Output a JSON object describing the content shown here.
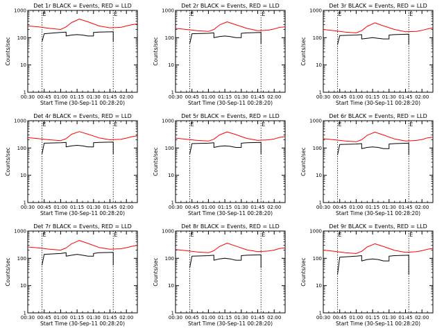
{
  "figure": {
    "background": "#ffffff",
    "colors": {
      "events": "#000000",
      "lld": "#ff0000",
      "axes": "#000000"
    }
  },
  "chart_data": [
    {
      "type": "line",
      "title": "Det 1r BLACK = Events, RED = LLD",
      "xlabel": "Start Time (30-Sep-11 00:28:20)",
      "ylabel": "Counts/sec",
      "yscale": "log",
      "ylim": [
        1,
        1000
      ],
      "xlim": [
        "00:30",
        "02:10"
      ],
      "xticks": [
        "00:30",
        "00:45",
        "01:00",
        "01:15",
        "01:30",
        "01:45",
        "02:00"
      ],
      "yticks": [
        "1",
        "10",
        "100",
        "1000"
      ],
      "marker_text": "E",
      "vlines": [
        "00:43",
        "01:48"
      ],
      "series": [
        {
          "name": "Events",
          "color": "#000000",
          "x": [
            "00:43",
            "00:45",
            "01:00",
            "01:05",
            "01:05",
            "01:10",
            "01:15",
            "01:20",
            "01:25",
            "01:30",
            "01:30",
            "01:35",
            "01:48",
            "01:48"
          ],
          "y": [
            70,
            140,
            155,
            160,
            115,
            125,
            130,
            125,
            115,
            115,
            155,
            160,
            165,
            70
          ]
        },
        {
          "name": "LLD",
          "color": "#ff0000",
          "x": [
            "00:30",
            "00:40",
            "00:50",
            "01:00",
            "01:05",
            "01:10",
            "01:17",
            "01:25",
            "01:35",
            "01:45",
            "01:55",
            "02:00",
            "02:05",
            "02:10"
          ],
          "y": [
            270,
            250,
            220,
            200,
            250,
            360,
            480,
            380,
            270,
            230,
            240,
            270,
            300,
            320
          ]
        }
      ]
    },
    {
      "type": "line",
      "title": "Det 2r BLACK = Events, RED = LLD",
      "xlabel": "Start Time (30-Sep-11 00:28:20)",
      "ylabel": "Counts/sec",
      "yscale": "log",
      "ylim": [
        1,
        1000
      ],
      "xlim": [
        "00:30",
        "02:10"
      ],
      "xticks": [
        "00:30",
        "00:45",
        "01:00",
        "01:15",
        "01:30",
        "01:45",
        "02:00"
      ],
      "yticks": [
        "1",
        "10",
        "100",
        "1000"
      ],
      "marker_text": "E",
      "vlines": [
        "00:43",
        "01:48"
      ],
      "series": [
        {
          "name": "Events",
          "color": "#000000",
          "x": [
            "00:43",
            "00:45",
            "01:00",
            "01:05",
            "01:05",
            "01:10",
            "01:15",
            "01:20",
            "01:25",
            "01:30",
            "01:30",
            "01:35",
            "01:48",
            "01:48"
          ],
          "y": [
            60,
            140,
            145,
            150,
            100,
            110,
            115,
            110,
            100,
            100,
            145,
            150,
            155,
            60
          ]
        },
        {
          "name": "LLD",
          "color": "#ff0000",
          "x": [
            "00:30",
            "00:40",
            "00:50",
            "01:00",
            "01:05",
            "01:10",
            "01:17",
            "01:25",
            "01:35",
            "01:45",
            "01:55",
            "02:00",
            "02:05",
            "02:10"
          ],
          "y": [
            220,
            200,
            180,
            170,
            200,
            290,
            380,
            300,
            220,
            180,
            190,
            210,
            240,
            250
          ]
        }
      ]
    },
    {
      "type": "line",
      "title": "Det 3r BLACK = Events, RED = LLD",
      "xlabel": "Start Time (30-Sep-11 00:28:20)",
      "ylabel": "Counts/sec",
      "yscale": "log",
      "ylim": [
        1,
        1000
      ],
      "xlim": [
        "00:30",
        "02:10"
      ],
      "xticks": [
        "00:30",
        "00:45",
        "01:00",
        "01:15",
        "01:30",
        "01:45",
        "02:00"
      ],
      "yticks": [
        "1",
        "10",
        "100",
        "1000"
      ],
      "marker_text": "E",
      "vlines": [
        "00:43",
        "01:48"
      ],
      "series": [
        {
          "name": "Events",
          "color": "#000000",
          "x": [
            "00:43",
            "00:45",
            "01:00",
            "01:05",
            "01:05",
            "01:10",
            "01:15",
            "01:20",
            "01:25",
            "01:30",
            "01:30",
            "01:35",
            "01:48",
            "01:48"
          ],
          "y": [
            55,
            120,
            125,
            130,
            90,
            95,
            100,
            95,
            90,
            90,
            125,
            130,
            135,
            55
          ]
        },
        {
          "name": "LLD",
          "color": "#ff0000",
          "x": [
            "00:30",
            "00:40",
            "00:50",
            "01:00",
            "01:05",
            "01:10",
            "01:17",
            "01:25",
            "01:35",
            "01:45",
            "01:55",
            "02:00",
            "02:05",
            "02:10"
          ],
          "y": [
            200,
            180,
            160,
            150,
            180,
            260,
            350,
            270,
            200,
            165,
            170,
            185,
            210,
            230
          ]
        }
      ]
    },
    {
      "type": "line",
      "title": "Det 4r BLACK = Events, RED = LLD",
      "xlabel": "Start Time (30-Sep-11 00:28:20)",
      "ylabel": "Counts/sec",
      "yscale": "log",
      "ylim": [
        1,
        1000
      ],
      "xlim": [
        "00:30",
        "02:10"
      ],
      "xticks": [
        "00:30",
        "00:45",
        "01:00",
        "01:15",
        "01:30",
        "01:45",
        "02:00"
      ],
      "yticks": [
        "1",
        "10",
        "100",
        "1000"
      ],
      "marker_text": "E",
      "vlines": [
        "00:43",
        "01:48"
      ],
      "series": [
        {
          "name": "Events",
          "color": "#000000",
          "x": [
            "00:43",
            "00:45",
            "01:00",
            "01:05",
            "01:05",
            "01:10",
            "01:15",
            "01:20",
            "01:25",
            "01:30",
            "01:30",
            "01:35",
            "01:48",
            "01:48"
          ],
          "y": [
            60,
            150,
            155,
            160,
            110,
            120,
            125,
            120,
            110,
            110,
            155,
            160,
            165,
            60
          ]
        },
        {
          "name": "LLD",
          "color": "#ff0000",
          "x": [
            "00:30",
            "00:40",
            "00:50",
            "01:00",
            "01:05",
            "01:10",
            "01:17",
            "01:25",
            "01:35",
            "01:45",
            "01:55",
            "02:00",
            "02:05",
            "02:10"
          ],
          "y": [
            240,
            220,
            200,
            185,
            220,
            320,
            400,
            320,
            235,
            200,
            210,
            230,
            260,
            280
          ]
        }
      ]
    },
    {
      "type": "line",
      "title": "Det 5r BLACK = Events, RED = LLD",
      "xlabel": "Start Time (30-Sep-11 00:28:20)",
      "ylabel": "Counts/sec",
      "yscale": "log",
      "ylim": [
        1,
        1000
      ],
      "xlim": [
        "00:30",
        "02:10"
      ],
      "xticks": [
        "00:30",
        "00:45",
        "01:00",
        "01:15",
        "01:30",
        "01:45",
        "02:00"
      ],
      "yticks": [
        "1",
        "10",
        "100",
        "1000"
      ],
      "marker_text": "E",
      "vlines": [
        "00:43",
        "01:48"
      ],
      "series": [
        {
          "name": "Events",
          "color": "#000000",
          "x": [
            "00:43",
            "00:45",
            "01:00",
            "01:05",
            "01:05",
            "01:10",
            "01:15",
            "01:20",
            "01:25",
            "01:30",
            "01:30",
            "01:35",
            "01:48",
            "01:48"
          ],
          "y": [
            60,
            145,
            150,
            155,
            105,
            115,
            120,
            115,
            105,
            105,
            150,
            155,
            160,
            60
          ]
        },
        {
          "name": "LLD",
          "color": "#ff0000",
          "x": [
            "00:30",
            "00:40",
            "00:50",
            "01:00",
            "01:05",
            "01:10",
            "01:17",
            "01:25",
            "01:35",
            "01:45",
            "01:55",
            "02:00",
            "02:05",
            "02:10"
          ],
          "y": [
            230,
            210,
            190,
            180,
            210,
            300,
            390,
            310,
            225,
            190,
            200,
            215,
            245,
            260
          ]
        }
      ]
    },
    {
      "type": "line",
      "title": "Det 6r BLACK = Events, RED = LLD",
      "xlabel": "Start Time (30-Sep-11 00:28:20)",
      "ylabel": "Counts/sec",
      "yscale": "log",
      "ylim": [
        1,
        1000
      ],
      "xlim": [
        "00:30",
        "02:10"
      ],
      "xticks": [
        "00:30",
        "00:45",
        "01:00",
        "01:15",
        "01:30",
        "01:45",
        "02:00"
      ],
      "yticks": [
        "1",
        "10",
        "100",
        "1000"
      ],
      "marker_text": "E",
      "vlines": [
        "00:43",
        "01:48"
      ],
      "series": [
        {
          "name": "Events",
          "color": "#000000",
          "x": [
            "00:43",
            "00:45",
            "01:00",
            "01:05",
            "01:05",
            "01:10",
            "01:15",
            "01:20",
            "01:25",
            "01:30",
            "01:30",
            "01:35",
            "01:48",
            "01:48"
          ],
          "y": [
            55,
            135,
            140,
            145,
            95,
            105,
            110,
            105,
            95,
            95,
            140,
            145,
            150,
            55
          ]
        },
        {
          "name": "LLD",
          "color": "#ff0000",
          "x": [
            "00:30",
            "00:40",
            "00:50",
            "01:00",
            "01:05",
            "01:10",
            "01:17",
            "01:25",
            "01:35",
            "01:45",
            "01:55",
            "02:00",
            "02:05",
            "02:10"
          ],
          "y": [
            220,
            200,
            180,
            170,
            200,
            290,
            380,
            300,
            215,
            180,
            190,
            205,
            235,
            250
          ]
        }
      ]
    },
    {
      "type": "line",
      "title": "Det 7r BLACK = Events, RED = LLD",
      "xlabel": "Start Time (30-Sep-11 00:28:20)",
      "ylabel": "Counts/sec",
      "yscale": "log",
      "ylim": [
        1,
        1000
      ],
      "xlim": [
        "00:30",
        "02:10"
      ],
      "xticks": [
        "00:30",
        "00:45",
        "01:00",
        "01:15",
        "01:30",
        "01:45",
        "02:00"
      ],
      "yticks": [
        "1",
        "10",
        "100",
        "1000"
      ],
      "marker_text": "E",
      "vlines": [
        "00:43",
        "01:48"
      ],
      "series": [
        {
          "name": "Events",
          "color": "#000000",
          "x": [
            "00:43",
            "00:45",
            "01:00",
            "01:05",
            "01:05",
            "01:10",
            "01:15",
            "01:20",
            "01:25",
            "01:30",
            "01:30",
            "01:35",
            "01:48",
            "01:48"
          ],
          "y": [
            55,
            140,
            150,
            160,
            120,
            130,
            140,
            130,
            120,
            120,
            150,
            160,
            165,
            55
          ]
        },
        {
          "name": "LLD",
          "color": "#ff0000",
          "x": [
            "00:30",
            "00:40",
            "00:50",
            "01:00",
            "01:05",
            "01:10",
            "01:17",
            "01:25",
            "01:35",
            "01:45",
            "01:55",
            "02:00",
            "02:05",
            "02:10"
          ],
          "y": [
            260,
            240,
            215,
            200,
            240,
            340,
            450,
            350,
            250,
            215,
            225,
            245,
            275,
            300
          ]
        }
      ]
    },
    {
      "type": "line",
      "title": "Det 8r BLACK = Events, RED = LLD",
      "xlabel": "Start Time (30-Sep-11 00:28:20)",
      "ylabel": "Counts/sec",
      "yscale": "log",
      "ylim": [
        1,
        1000
      ],
      "xlim": [
        "00:30",
        "02:10"
      ],
      "xticks": [
        "00:30",
        "00:45",
        "01:00",
        "01:15",
        "01:30",
        "01:45",
        "02:00"
      ],
      "yticks": [
        "1",
        "10",
        "100",
        "1000"
      ],
      "marker_text": "E",
      "vlines": [
        "00:43",
        "01:48"
      ],
      "series": [
        {
          "name": "Events",
          "color": "#000000",
          "x": [
            "00:43",
            "00:45",
            "01:00",
            "01:05",
            "01:05",
            "01:10",
            "01:15",
            "01:20",
            "01:25",
            "01:30",
            "01:30",
            "01:35",
            "01:48",
            "01:48"
          ],
          "y": [
            45,
            120,
            125,
            130,
            85,
            95,
            100,
            95,
            85,
            85,
            125,
            130,
            135,
            45
          ]
        },
        {
          "name": "LLD",
          "color": "#ff0000",
          "x": [
            "00:30",
            "00:40",
            "00:50",
            "01:00",
            "01:05",
            "01:10",
            "01:17",
            "01:25",
            "01:35",
            "01:45",
            "01:55",
            "02:00",
            "02:05",
            "02:10"
          ],
          "y": [
            210,
            190,
            170,
            160,
            190,
            270,
            360,
            280,
            205,
            175,
            185,
            200,
            230,
            240
          ]
        }
      ]
    },
    {
      "type": "line",
      "title": "Det 9r BLACK = Events, RED = LLD",
      "xlabel": "Start Time (30-Sep-11 00:28:20)",
      "ylabel": "Counts/sec",
      "yscale": "log",
      "ylim": [
        1,
        1000
      ],
      "xlim": [
        "00:30",
        "02:10"
      ],
      "xticks": [
        "00:30",
        "00:45",
        "01:00",
        "01:15",
        "01:30",
        "01:45",
        "02:00"
      ],
      "yticks": [
        "1",
        "10",
        "100",
        "1000"
      ],
      "marker_text": "E",
      "vlines": [
        "00:43",
        "01:48"
      ],
      "series": [
        {
          "name": "Events",
          "color": "#000000",
          "x": [
            "00:43",
            "00:45",
            "01:00",
            "01:05",
            "01:05",
            "01:10",
            "01:15",
            "01:20",
            "01:25",
            "01:30",
            "01:30",
            "01:35",
            "01:48",
            "01:48"
          ],
          "y": [
            25,
            110,
            120,
            125,
            80,
            90,
            95,
            90,
            80,
            80,
            120,
            125,
            130,
            25
          ]
        },
        {
          "name": "LLD",
          "color": "#ff0000",
          "x": [
            "00:30",
            "00:40",
            "00:50",
            "01:00",
            "01:05",
            "01:10",
            "01:17",
            "01:25",
            "01:35",
            "01:45",
            "01:55",
            "02:00",
            "02:05",
            "02:10"
          ],
          "y": [
            200,
            180,
            160,
            150,
            180,
            260,
            340,
            270,
            195,
            165,
            175,
            190,
            215,
            230
          ]
        }
      ]
    }
  ]
}
